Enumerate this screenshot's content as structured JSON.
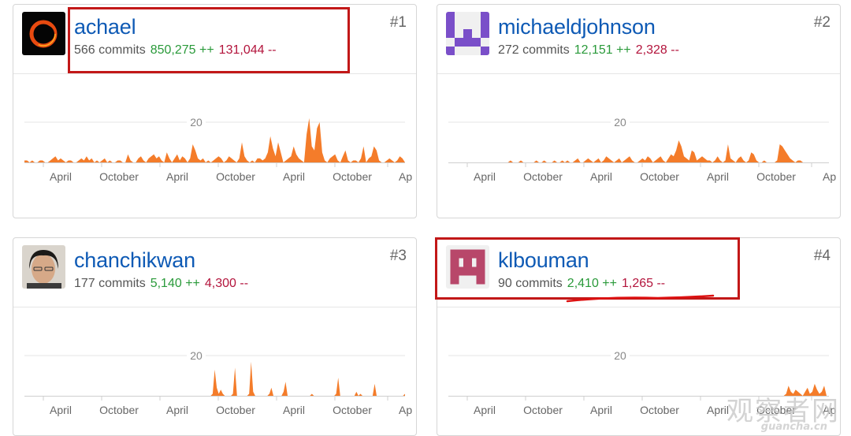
{
  "contributors": [
    {
      "username": "achael",
      "commits": "566 commits",
      "additions": "850,275 ++",
      "deletions": "131,044 --",
      "rank": "#1",
      "avatar_icon": "black-hole-avatar",
      "highlighted": true
    },
    {
      "username": "michaeldjohnson",
      "commits": "272 commits",
      "additions": "12,151 ++",
      "deletions": "2,328 --",
      "rank": "#2",
      "avatar_icon": "purple-pixel-avatar",
      "highlighted": false
    },
    {
      "username": "chanchikwan",
      "commits": "177 commits",
      "additions": "5,140 ++",
      "deletions": "4,300 --",
      "rank": "#3",
      "avatar_icon": "photo-avatar",
      "highlighted": false
    },
    {
      "username": "klbouman",
      "commits": "90 commits",
      "additions": "2,410 ++",
      "deletions": "1,265 --",
      "rank": "#4",
      "avatar_icon": "pink-pixel-avatar",
      "highlighted": true
    }
  ],
  "chart_data": [
    {
      "type": "area",
      "series": [
        {
          "values": [
            1,
            1,
            0,
            1,
            0,
            0,
            1,
            1,
            0,
            0,
            1,
            2,
            3,
            1,
            2,
            1,
            0,
            1,
            1,
            0,
            0,
            1,
            2,
            1,
            3,
            1,
            2,
            0,
            1,
            0,
            1,
            2,
            0,
            1,
            0,
            0,
            1,
            1,
            0,
            0,
            4,
            1,
            0,
            0,
            2,
            3,
            1,
            0,
            2,
            3,
            4,
            2,
            3,
            1,
            0,
            5,
            2,
            0,
            2,
            4,
            1,
            3,
            2,
            0,
            2,
            9,
            6,
            2,
            1,
            2,
            0,
            1,
            0,
            1,
            2,
            3,
            2,
            0,
            1,
            3,
            2,
            1,
            0,
            2,
            10,
            3,
            1,
            0,
            1,
            0,
            2,
            2,
            1,
            2,
            5,
            13,
            7,
            3,
            10,
            5,
            0,
            1,
            2,
            3,
            8,
            4,
            2,
            1,
            0,
            14,
            22,
            8,
            6,
            17,
            20,
            5,
            1,
            0,
            2,
            3,
            4,
            1,
            0,
            3,
            6,
            1,
            0,
            1,
            1,
            0,
            2,
            8,
            0,
            2,
            3,
            8,
            6,
            1,
            0,
            0,
            1,
            2,
            1,
            0,
            1,
            3,
            2,
            0
          ]
        }
      ],
      "ytick": "20",
      "xticks": [
        "April",
        "October",
        "April",
        "October",
        "April",
        "October",
        "Ap"
      ]
    },
    {
      "type": "area",
      "series": [
        {
          "values": [
            0,
            0,
            0,
            0,
            0,
            0,
            0,
            0,
            0,
            0,
            0,
            0,
            0,
            0,
            0,
            0,
            0,
            0,
            0,
            0,
            0,
            0,
            0,
            0,
            1,
            0,
            0,
            0,
            1,
            0,
            0,
            0,
            0,
            0,
            1,
            0,
            0,
            1,
            0,
            0,
            0,
            1,
            0,
            0,
            1,
            0,
            1,
            0,
            0,
            1,
            2,
            0,
            0,
            1,
            2,
            1,
            0,
            1,
            2,
            0,
            1,
            3,
            2,
            1,
            0,
            1,
            2,
            0,
            1,
            2,
            3,
            1,
            0,
            0,
            1,
            2,
            1,
            3,
            2,
            0,
            1,
            2,
            3,
            1,
            0,
            2,
            4,
            3,
            6,
            11,
            8,
            3,
            2,
            1,
            6,
            5,
            1,
            2,
            3,
            2,
            1,
            1,
            0,
            1,
            3,
            1,
            0,
            1,
            9,
            2,
            1,
            0,
            2,
            3,
            1,
            0,
            1,
            5,
            4,
            1,
            0,
            0,
            1,
            0,
            0,
            0,
            0,
            1,
            9,
            8,
            6,
            4,
            2,
            1,
            0,
            1,
            1,
            0,
            0,
            0,
            0,
            0,
            0,
            0,
            0,
            0,
            0,
            0
          ]
        }
      ],
      "ytick": "20",
      "xticks": [
        "April",
        "October",
        "April",
        "October",
        "April",
        "October",
        "Ap"
      ]
    },
    {
      "type": "area",
      "series": [
        {
          "values": [
            0,
            0,
            0,
            0,
            0,
            0,
            0,
            0,
            0,
            0,
            0,
            0,
            0,
            0,
            0,
            0,
            0,
            0,
            0,
            0,
            0,
            0,
            0,
            0,
            0,
            0,
            0,
            0,
            0,
            0,
            0,
            0,
            0,
            0,
            0,
            0,
            0,
            0,
            0,
            0,
            0,
            0,
            0,
            0,
            0,
            0,
            0,
            0,
            0,
            0,
            0,
            0,
            0,
            0,
            0,
            0,
            0,
            0,
            0,
            0,
            0,
            0,
            0,
            0,
            0,
            0,
            0,
            0,
            0,
            0,
            0,
            0,
            0,
            0,
            0,
            0,
            0,
            0,
            0,
            0,
            0,
            0,
            0,
            0,
            0,
            0,
            0,
            0,
            0,
            0,
            0,
            0,
            0,
            1,
            13,
            4,
            1,
            3,
            1,
            0,
            0,
            0,
            0,
            1,
            14,
            0,
            0,
            0,
            0,
            0,
            0,
            1,
            17,
            2,
            0,
            0,
            0,
            0,
            0,
            0,
            0,
            1,
            4,
            0,
            0,
            0,
            0,
            0,
            2,
            7,
            0,
            0,
            0,
            0,
            0,
            0,
            0,
            0,
            0,
            0,
            0,
            0,
            1,
            0,
            0,
            0,
            0,
            0,
            0,
            0,
            0,
            0,
            0,
            0,
            1,
            9,
            0,
            0,
            0,
            0,
            0,
            0,
            0,
            0,
            2,
            0,
            1,
            0,
            0,
            0,
            0,
            0,
            0,
            6,
            0,
            0,
            0,
            0,
            0,
            0,
            0,
            0,
            0,
            0,
            0,
            0,
            0,
            0,
            1
          ]
        }
      ],
      "ytick": "20",
      "xticks": [
        "April",
        "October",
        "April",
        "October",
        "April",
        "October",
        "Ap"
      ]
    },
    {
      "type": "area",
      "series": [
        {
          "values": [
            0,
            0,
            0,
            0,
            0,
            0,
            0,
            0,
            0,
            0,
            0,
            0,
            0,
            0,
            0,
            0,
            0,
            0,
            0,
            0,
            0,
            0,
            0,
            0,
            0,
            0,
            0,
            0,
            0,
            0,
            0,
            0,
            0,
            0,
            0,
            0,
            0,
            0,
            0,
            0,
            0,
            0,
            0,
            0,
            0,
            0,
            0,
            0,
            0,
            0,
            0,
            0,
            0,
            0,
            0,
            0,
            0,
            0,
            0,
            0,
            0,
            0,
            0,
            0,
            0,
            0,
            0,
            0,
            0,
            0,
            0,
            0,
            0,
            0,
            0,
            0,
            0,
            0,
            0,
            0,
            0,
            0,
            0,
            0,
            0,
            0,
            0,
            0,
            0,
            0,
            0,
            0,
            0,
            0,
            0,
            0,
            0,
            0,
            0,
            0,
            0,
            0,
            0,
            0,
            0,
            0,
            0,
            0,
            0,
            0,
            0,
            0,
            0,
            0,
            0,
            0,
            0,
            0,
            0,
            0,
            0,
            0,
            0,
            0,
            0,
            0,
            0,
            0,
            0,
            0,
            0,
            0,
            0,
            0,
            0,
            0,
            0,
            0,
            0,
            0,
            0,
            0,
            1,
            5,
            2,
            1,
            3,
            2,
            1,
            0,
            2,
            4,
            1,
            2,
            6,
            3,
            1,
            2,
            5,
            0,
            0
          ]
        }
      ],
      "ytick": "20",
      "xticks": [
        "April",
        "October",
        "April",
        "October",
        "April",
        "October",
        "Ap"
      ]
    }
  ],
  "colors": {
    "chart_fill": "#f47c2a",
    "highlight": "#c21818",
    "username": "#0e5ab5"
  },
  "watermark": {
    "text": "观察者网",
    "sub": "guancha.cn"
  }
}
